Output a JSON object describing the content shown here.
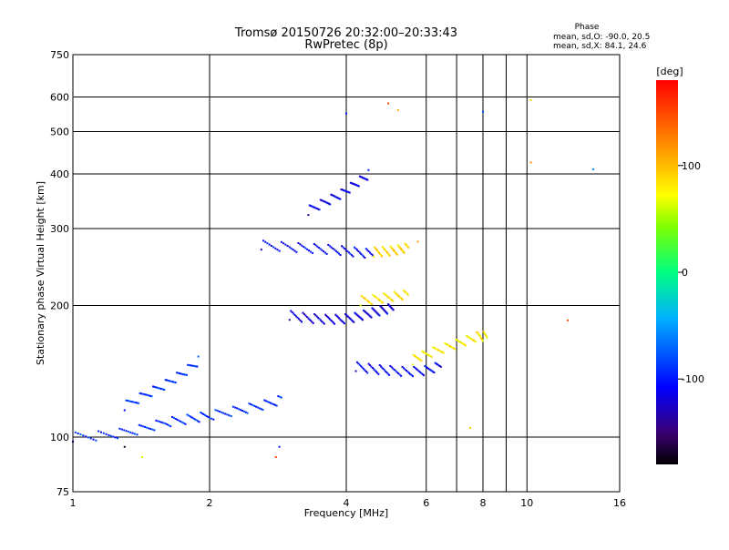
{
  "chart_data": {
    "type": "scatter",
    "title": "Tromsø 20150726 20:32:00–20:33:43",
    "subtitle": "RwPretec (8p)",
    "xlabel": "Frequency [MHz]",
    "ylabel": "Stationary phase Virtual Height [km]",
    "x_scale": "log",
    "y_scale": "log",
    "xlim": [
      1,
      16
    ],
    "ylim": [
      75,
      750
    ],
    "x_ticks": [
      "1",
      "2",
      "4",
      "6",
      "8",
      "10",
      "16"
    ],
    "y_ticks": [
      "75",
      "100",
      "200",
      "300",
      "400",
      "500",
      "600",
      "750"
    ],
    "grid": true,
    "phase_stats": {
      "title": "Phase",
      "line_o": "mean, sd,O: -90.0, 20.5",
      "line_x": "mean, sd,X:  84.1, 24.6"
    },
    "colorbar": {
      "label": "[deg]",
      "ticks": [
        "100",
        "0",
        "-100"
      ],
      "range": [
        -180,
        180
      ],
      "colormap": "rainbow-black"
    },
    "traces": [
      {
        "name": "",
        "phase": -95,
        "x": [
          1.0,
          1.2,
          1.4,
          1.6,
          1.8,
          2.0,
          2.3,
          2.6,
          2.9
        ],
        "y": [
          100,
          101,
          104,
          108,
          110,
          112,
          115,
          118,
          122
        ]
      },
      {
        "name": "",
        "phase": -90,
        "x": [
          1.3,
          1.45,
          1.6,
          1.75,
          1.9
        ],
        "y": [
          118,
          125,
          132,
          140,
          150
        ]
      },
      {
        "name": "",
        "phase": -120,
        "x": [
          3.0,
          3.3,
          3.6,
          3.9,
          4.2,
          4.5,
          4.8,
          5.1
        ],
        "y": [
          190,
          187,
          186,
          186,
          188,
          192,
          195,
          198
        ]
      },
      {
        "name": "",
        "phase": -115,
        "x": [
          3.3,
          3.6,
          3.9,
          4.2,
          4.5
        ],
        "y": [
          330,
          345,
          360,
          380,
          400
        ]
      },
      {
        "name": "",
        "phase": -110,
        "x": [
          2.6,
          3.0,
          3.4,
          3.8,
          4.2,
          4.6
        ],
        "y": [
          275,
          272,
          270,
          268,
          265,
          262
        ]
      },
      {
        "name": "",
        "phase": -110,
        "x": [
          4.2,
          4.6,
          5.0,
          5.5,
          6.0,
          6.5
        ],
        "y": [
          145,
          143,
          142,
          141,
          142,
          146
        ]
      },
      {
        "name": "",
        "phase": 90,
        "x": [
          4.6,
          4.9,
          5.2,
          5.5
        ],
        "y": [
          265,
          266,
          268,
          272
        ]
      },
      {
        "name": "",
        "phase": 85,
        "x": [
          4.3,
          4.7,
          5.1,
          5.5
        ],
        "y": [
          205,
          207,
          210,
          212
        ]
      },
      {
        "name": "",
        "phase": 80,
        "x": [
          5.6,
          6.0,
          6.6,
          7.2,
          7.8,
          8.2
        ],
        "y": [
          150,
          155,
          160,
          165,
          170,
          170
        ]
      }
    ],
    "points": [
      {
        "x": 4.95,
        "y": 580,
        "phase": 150
      },
      {
        "x": 5.2,
        "y": 560,
        "phase": 110
      },
      {
        "x": 4.0,
        "y": 550,
        "phase": -100
      },
      {
        "x": 10.2,
        "y": 590,
        "phase": 90
      },
      {
        "x": 8.0,
        "y": 555,
        "phase": -80
      },
      {
        "x": 10.2,
        "y": 425,
        "phase": 120
      },
      {
        "x": 14.0,
        "y": 410,
        "phase": -60
      },
      {
        "x": 12.3,
        "y": 185,
        "phase": 150
      },
      {
        "x": 2.8,
        "y": 90,
        "phase": 150
      },
      {
        "x": 1.3,
        "y": 95,
        "phase": -170
      },
      {
        "x": 1.42,
        "y": 90,
        "phase": 60
      },
      {
        "x": 2.85,
        "y": 95,
        "phase": -100
      },
      {
        "x": 7.5,
        "y": 105,
        "phase": 95
      },
      {
        "x": 5.75,
        "y": 280,
        "phase": 110
      }
    ]
  }
}
